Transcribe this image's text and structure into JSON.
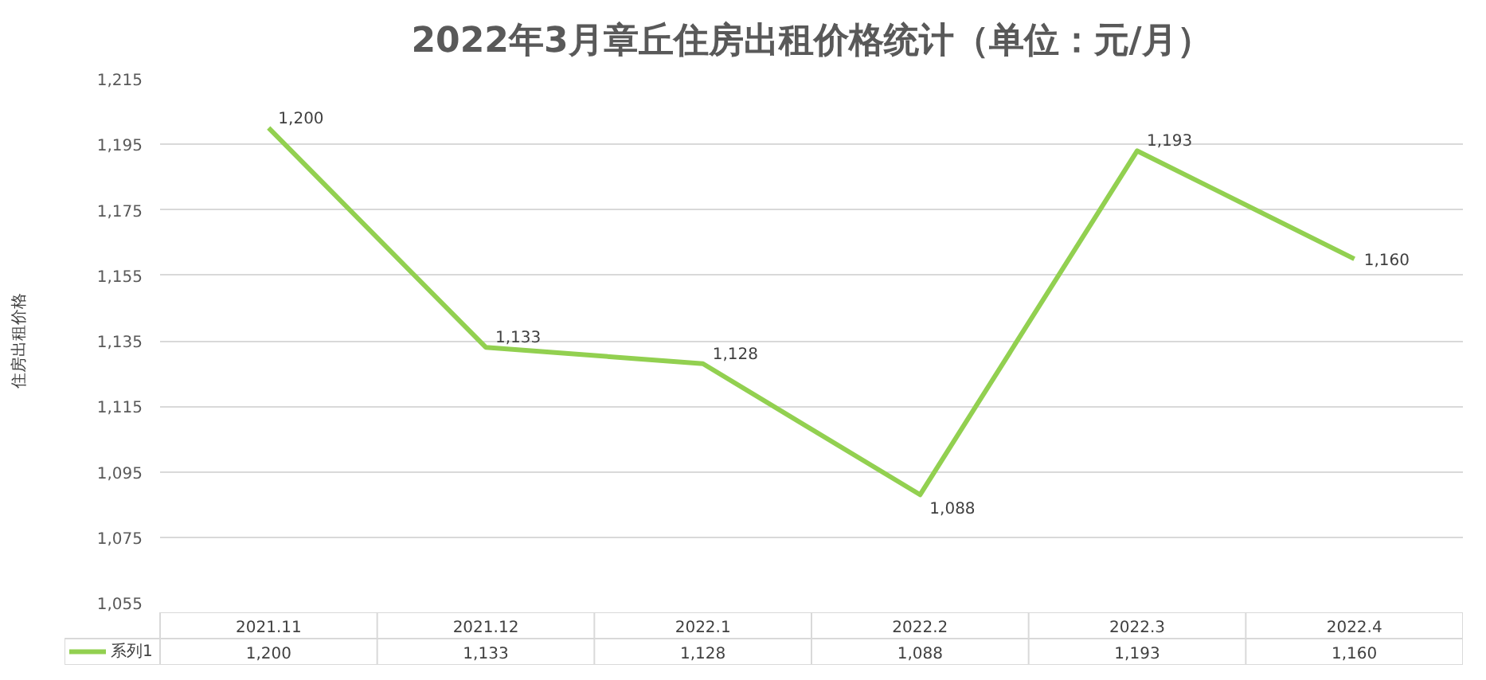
{
  "chart_data": {
    "type": "line",
    "title": "2022年3月章丘住房出租价格统计（单位：元/月）",
    "ylabel": "住房出租价格",
    "categories": [
      "2021.11",
      "2021.12",
      "2022.1",
      "2022.2",
      "2022.3",
      "2022.4"
    ],
    "series": [
      {
        "name": "系列1",
        "color": "#92d050",
        "values": [
          1200,
          1133,
          1128,
          1088,
          1193,
          1160
        ],
        "value_labels": [
          "1,200",
          "1,133",
          "1,128",
          "1,088",
          "1,193",
          "1,160"
        ]
      }
    ],
    "ylim": [
      1055,
      1215
    ],
    "yticks": [
      {
        "value": 1055,
        "label": "1,055"
      },
      {
        "value": 1075,
        "label": "1,075"
      },
      {
        "value": 1095,
        "label": "1,095"
      },
      {
        "value": 1115,
        "label": "1,115"
      },
      {
        "value": 1135,
        "label": "1,135"
      },
      {
        "value": 1155,
        "label": "1,155"
      },
      {
        "value": 1175,
        "label": "1,175"
      },
      {
        "value": 1195,
        "label": "1,195"
      },
      {
        "value": 1215,
        "label": "1,215"
      }
    ],
    "grid": "y",
    "legend": "bottom",
    "line_style": "solid"
  }
}
